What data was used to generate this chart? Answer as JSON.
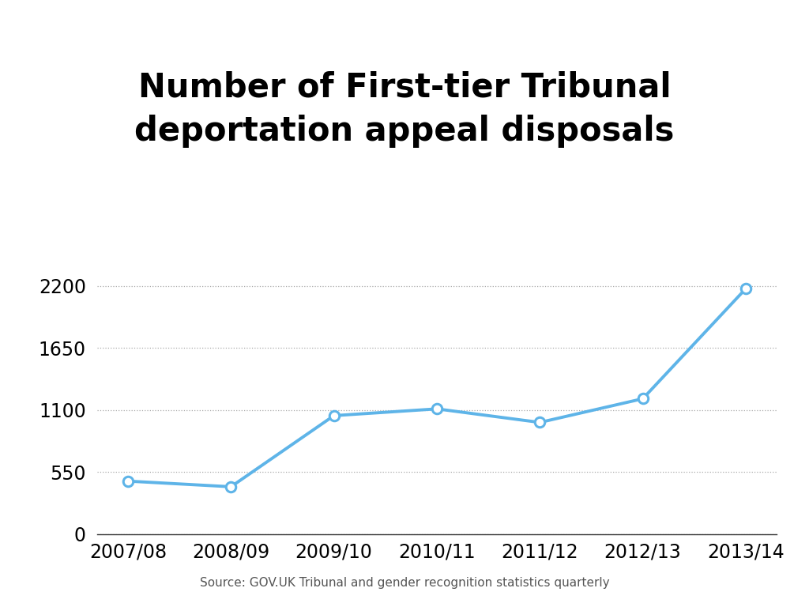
{
  "title": "Number of First-tier Tribunal\ndeportation appeal disposals",
  "x_labels": [
    "2007/08",
    "2008/09",
    "2009/10",
    "2010/11",
    "2011/12",
    "2012/13",
    "2013/14"
  ],
  "y_values": [
    470,
    420,
    1050,
    1110,
    990,
    1200,
    2175
  ],
  "line_color": "#5EB4E8",
  "marker_color": "#5EB4E8",
  "yticks": [
    0,
    550,
    1100,
    1650,
    2200
  ],
  "ylim": [
    0,
    2420
  ],
  "source_text": "Source: GOV.UK Tribunal and gender recognition statistics quarterly",
  "background_color": "#ffffff",
  "title_fontsize": 30,
  "tick_fontsize": 17,
  "source_fontsize": 11,
  "grid_color": "#aaaaaa",
  "line_width": 2.8,
  "marker_size": 9
}
